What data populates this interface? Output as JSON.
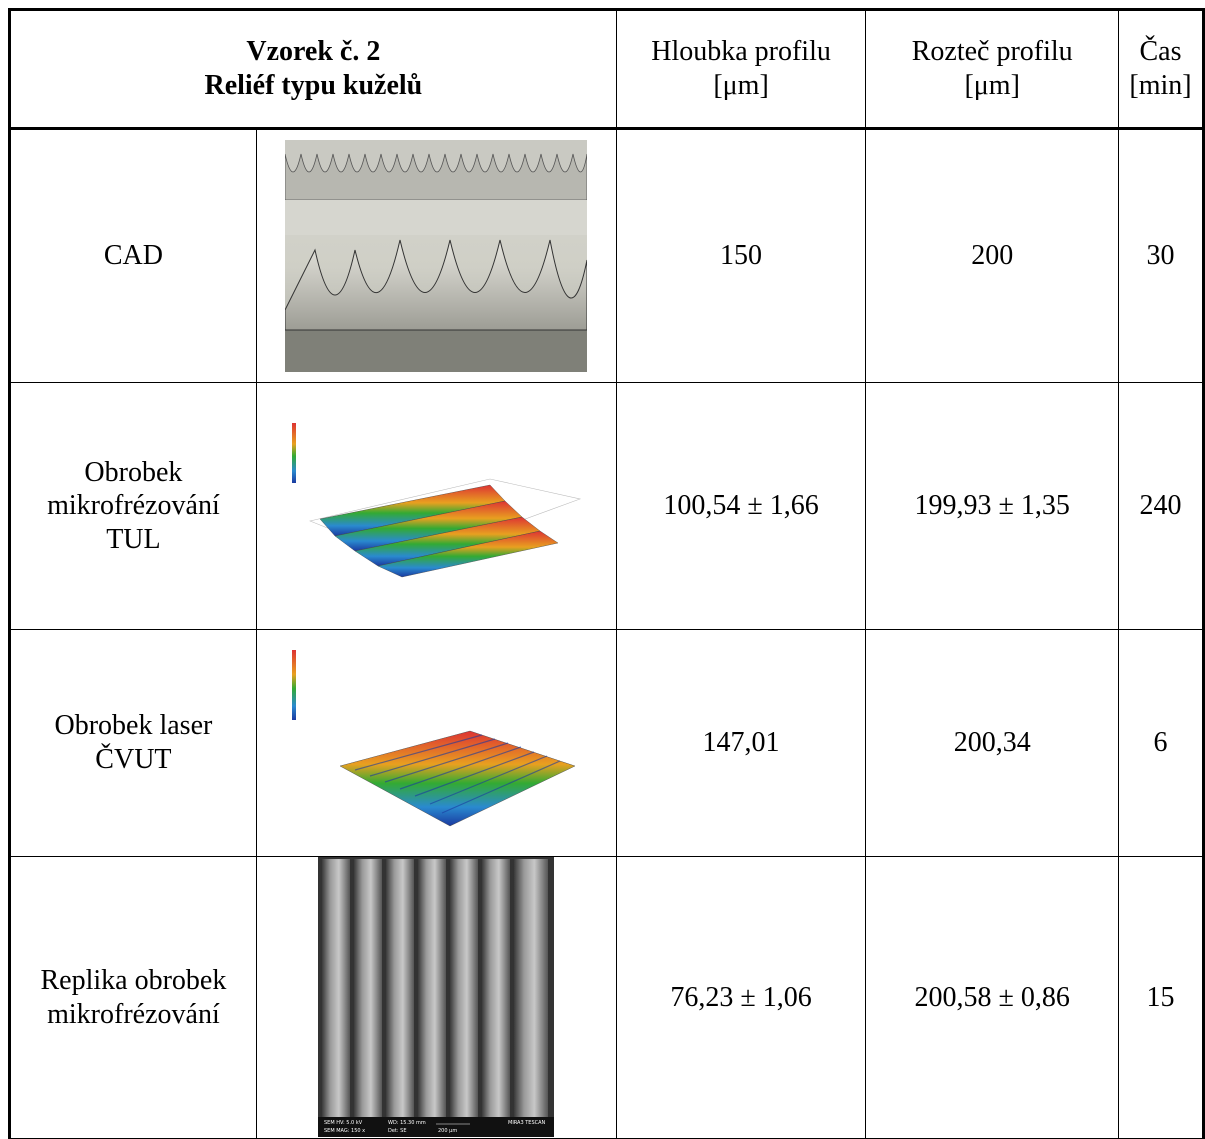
{
  "table": {
    "header": {
      "sample": "Vzorek č. 2",
      "relief": "Reliéf typu kuželů",
      "columns": [
        [
          "Hloubka profilu",
          "[μm]"
        ],
        [
          "Rozteč profilu",
          "[μm]"
        ],
        [
          "Čas",
          "[min]"
        ]
      ]
    },
    "rows": [
      {
        "label": [
          "CAD"
        ],
        "depth": "150",
        "pitch": "200",
        "time": "30"
      },
      {
        "label": [
          "Obrobek",
          "mikrofrézování",
          "TUL"
        ],
        "depth": "100,54 ± 1,66",
        "pitch": "199,93 ± 1,35",
        "time": "240"
      },
      {
        "label": [
          "Obrobek laser",
          "ČVUT"
        ],
        "depth": "147,01",
        "pitch": "200,34",
        "time": "6"
      },
      {
        "label": [
          "Replika obrobek",
          "mikrofrézování"
        ],
        "depth": "76,23 ± 1,06",
        "pitch": "200,58 ± 0,86",
        "time": "15"
      }
    ]
  },
  "sem_labels": [
    "SEM HV: 5.0 kV",
    "WD: 15.30 mm",
    "MIRA3 TESCAN",
    "SEM MAG: 150 x",
    "Det: SE",
    "200 μm"
  ]
}
